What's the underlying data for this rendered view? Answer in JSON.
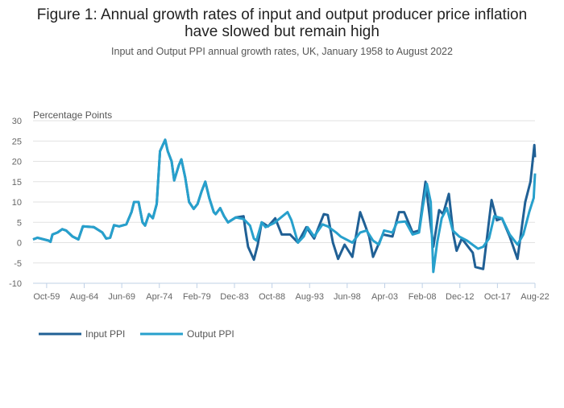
{
  "chart_data": {
    "type": "line",
    "title_lines": [
      "Figure 1: Annual growth rates of input and output producer price inflation",
      "have slowed but remain high"
    ],
    "subtitle": "Input and Output PPI annual growth rates, UK, January 1958 to August 2022",
    "ylabel": "Percentage Points",
    "xlabel": "",
    "xlim": [
      "1958-01",
      "2022-08"
    ],
    "ylim": [
      -10,
      30
    ],
    "yticks": [
      -10,
      -5,
      0,
      5,
      10,
      15,
      20,
      25,
      30
    ],
    "xticks": [
      {
        "date": "1959-10",
        "label": "Oct-59"
      },
      {
        "date": "1964-08",
        "label": "Aug-64"
      },
      {
        "date": "1969-06",
        "label": "Jun-69"
      },
      {
        "date": "1974-04",
        "label": "Apr-74"
      },
      {
        "date": "1979-02",
        "label": "Feb-79"
      },
      {
        "date": "1983-12",
        "label": "Dec-83"
      },
      {
        "date": "1988-10",
        "label": "Oct-88"
      },
      {
        "date": "1993-08",
        "label": "Aug-93"
      },
      {
        "date": "1998-06",
        "label": "Jun-98"
      },
      {
        "date": "2003-04",
        "label": "Apr-03"
      },
      {
        "date": "2008-02",
        "label": "Feb-08"
      },
      {
        "date": "2012-12",
        "label": "Dec-12"
      },
      {
        "date": "2017-10",
        "label": "Oct-17"
      },
      {
        "date": "2022-08",
        "label": "Aug-22"
      }
    ],
    "grid": "horizontal",
    "legend_position": "bottom-left",
    "series": [
      {
        "name": "Input PPI",
        "color": "#206095",
        "points": [
          [
            "1958-01",
            0.8
          ],
          [
            "1958-08",
            1.2
          ],
          [
            "1960-01",
            0.5
          ],
          [
            "1960-04",
            0.2
          ],
          [
            "1960-07",
            2
          ],
          [
            "1961-03",
            2.5
          ],
          [
            "1961-10",
            3.3
          ],
          [
            "1962-04",
            3
          ],
          [
            "1963-02",
            1.5
          ],
          [
            "1963-11",
            0.8
          ],
          [
            "1964-06",
            4
          ],
          [
            "1965-11",
            3.8
          ],
          [
            "1966-12",
            2.5
          ],
          [
            "1967-06",
            1
          ],
          [
            "1967-12",
            1.2
          ],
          [
            "1968-06",
            4.3
          ],
          [
            "1969-02",
            4
          ],
          [
            "1970-01",
            4.5
          ],
          [
            "1970-09",
            7.5
          ],
          [
            "1971-01",
            10
          ],
          [
            "1971-08",
            10
          ],
          [
            "1972-02",
            5
          ],
          [
            "1972-06",
            4.2
          ],
          [
            "1972-12",
            7
          ],
          [
            "1973-06",
            6
          ],
          [
            "1973-12",
            9.5
          ],
          [
            "1974-05",
            22.5
          ],
          [
            "1975-01",
            25.3
          ],
          [
            "1975-05",
            22.5
          ],
          [
            "1975-11",
            20
          ],
          [
            "1976-03",
            15.3
          ],
          [
            "1976-10",
            19
          ],
          [
            "1977-02",
            20.5
          ],
          [
            "1977-08",
            16
          ],
          [
            "1978-02",
            10
          ],
          [
            "1978-09",
            8.3
          ],
          [
            "1979-03",
            9.5
          ],
          [
            "1979-09",
            12.5
          ],
          [
            "1980-03",
            15
          ],
          [
            "1980-09",
            11
          ],
          [
            "1981-04",
            7.5
          ],
          [
            "1981-07",
            7
          ],
          [
            "1982-02",
            8.5
          ],
          [
            "1982-08",
            6.5
          ],
          [
            "1983-02",
            5
          ],
          [
            "1984-02",
            6.2
          ],
          [
            "1985-02",
            6.5
          ],
          [
            "1985-05",
            3
          ],
          [
            "1985-09",
            -1
          ],
          [
            "1986-06",
            -4.2
          ],
          [
            "1986-12",
            -0.5
          ],
          [
            "1987-06",
            5
          ],
          [
            "1988-04",
            4
          ],
          [
            "1989-03",
            6
          ],
          [
            "1990-01",
            2
          ],
          [
            "1991-02",
            2
          ],
          [
            "1992-02",
            0
          ],
          [
            "1993-03",
            3.8
          ],
          [
            "1994-03",
            1
          ],
          [
            "1995-06",
            7
          ],
          [
            "1995-12",
            6.8
          ],
          [
            "1996-08",
            0
          ],
          [
            "1997-04",
            -4
          ],
          [
            "1998-02",
            -0.5
          ],
          [
            "1999-02",
            -3.5
          ],
          [
            "2000-02",
            7.5
          ],
          [
            "2000-08",
            5
          ],
          [
            "2001-04",
            1.5
          ],
          [
            "2001-10",
            -3.5
          ],
          [
            "2003-01",
            2
          ],
          [
            "2004-04",
            1.5
          ],
          [
            "2005-02",
            7.5
          ],
          [
            "2005-10",
            7.5
          ],
          [
            "2006-11",
            2.5
          ],
          [
            "2007-09",
            3
          ],
          [
            "2008-07",
            15
          ],
          [
            "2009-07",
            -1
          ],
          [
            "2010-04",
            8
          ],
          [
            "2010-10",
            7
          ],
          [
            "2011-07",
            12
          ],
          [
            "2012-02",
            2
          ],
          [
            "2012-07",
            -2
          ],
          [
            "2013-03",
            1
          ],
          [
            "2014-08",
            -2.5
          ],
          [
            "2014-12",
            -6
          ],
          [
            "2015-12",
            -6.5
          ],
          [
            "2017-01",
            10.5
          ],
          [
            "2017-09",
            5.5
          ],
          [
            "2018-05",
            6
          ],
          [
            "2019-05",
            1.5
          ],
          [
            "2020-05",
            -4
          ],
          [
            "2021-05",
            10
          ],
          [
            "2022-01",
            15
          ],
          [
            "2022-07",
            24
          ],
          [
            "2022-08",
            21
          ]
        ]
      },
      {
        "name": "Output PPI",
        "color": "#27a0cc",
        "points": [
          [
            "1958-01",
            0.8
          ],
          [
            "1958-08",
            1.2
          ],
          [
            "1960-01",
            0.5
          ],
          [
            "1960-04",
            0.2
          ],
          [
            "1960-07",
            2
          ],
          [
            "1961-03",
            2.5
          ],
          [
            "1961-10",
            3.3
          ],
          [
            "1962-04",
            3
          ],
          [
            "1963-02",
            1.5
          ],
          [
            "1963-11",
            0.8
          ],
          [
            "1964-06",
            4
          ],
          [
            "1965-11",
            3.8
          ],
          [
            "1966-12",
            2.5
          ],
          [
            "1967-06",
            1
          ],
          [
            "1967-12",
            1.2
          ],
          [
            "1968-06",
            4.3
          ],
          [
            "1969-02",
            4
          ],
          [
            "1970-01",
            4.5
          ],
          [
            "1970-09",
            7.5
          ],
          [
            "1971-01",
            10
          ],
          [
            "1971-08",
            10
          ],
          [
            "1972-02",
            5
          ],
          [
            "1972-06",
            4.2
          ],
          [
            "1972-12",
            7
          ],
          [
            "1973-06",
            6
          ],
          [
            "1973-12",
            9.5
          ],
          [
            "1974-05",
            22.5
          ],
          [
            "1975-01",
            25.3
          ],
          [
            "1975-05",
            22.5
          ],
          [
            "1975-11",
            20
          ],
          [
            "1976-03",
            15.3
          ],
          [
            "1976-10",
            19
          ],
          [
            "1977-02",
            20.5
          ],
          [
            "1977-08",
            16
          ],
          [
            "1978-02",
            10
          ],
          [
            "1978-09",
            8.3
          ],
          [
            "1979-03",
            9.5
          ],
          [
            "1979-09",
            12.5
          ],
          [
            "1980-03",
            15
          ],
          [
            "1980-09",
            11
          ],
          [
            "1981-04",
            7.5
          ],
          [
            "1981-07",
            7
          ],
          [
            "1982-02",
            8.5
          ],
          [
            "1982-08",
            6.5
          ],
          [
            "1983-02",
            5
          ],
          [
            "1984-02",
            6.2
          ],
          [
            "1985-02",
            5.8
          ],
          [
            "1985-12",
            4.2
          ],
          [
            "1986-06",
            1
          ],
          [
            "1986-10",
            0.5
          ],
          [
            "1987-06",
            5
          ],
          [
            "1987-12",
            3.8
          ],
          [
            "1989-01",
            4.8
          ],
          [
            "1990-10",
            7.5
          ],
          [
            "1991-04",
            5.5
          ],
          [
            "1992-02",
            0
          ],
          [
            "1992-11",
            1.5
          ],
          [
            "1993-05",
            3.8
          ],
          [
            "1994-03",
            1.5
          ],
          [
            "1995-04",
            4.5
          ],
          [
            "1995-12",
            4
          ],
          [
            "1997-01",
            2.5
          ],
          [
            "1997-08",
            1.5
          ],
          [
            "1999-02",
            0
          ],
          [
            "2000-02",
            2.5
          ],
          [
            "2000-12",
            3
          ],
          [
            "2001-10",
            0.5
          ],
          [
            "2002-07",
            -0.5
          ],
          [
            "2003-03",
            3
          ],
          [
            "2004-04",
            2.5
          ],
          [
            "2004-11",
            5
          ],
          [
            "2005-12",
            5.2
          ],
          [
            "2006-11",
            2
          ],
          [
            "2007-09",
            2.5
          ],
          [
            "2008-03",
            9
          ],
          [
            "2008-09",
            14.5
          ],
          [
            "2009-03",
            10
          ],
          [
            "2009-07",
            -7.2
          ],
          [
            "2010-01",
            0
          ],
          [
            "2010-08",
            6
          ],
          [
            "2011-04",
            8.5
          ],
          [
            "2012-01",
            3
          ],
          [
            "2012-11",
            1.5
          ],
          [
            "2013-11",
            0.5
          ],
          [
            "2015-04",
            -1.5
          ],
          [
            "2015-12",
            -1
          ],
          [
            "2016-09",
            1
          ],
          [
            "2017-05",
            6.5
          ],
          [
            "2018-05",
            6
          ],
          [
            "2019-05",
            2
          ],
          [
            "2020-05",
            -0.5
          ],
          [
            "2021-02",
            2
          ],
          [
            "2021-11",
            7.5
          ],
          [
            "2022-06",
            11
          ],
          [
            "2022-08",
            17
          ]
        ]
      }
    ]
  }
}
